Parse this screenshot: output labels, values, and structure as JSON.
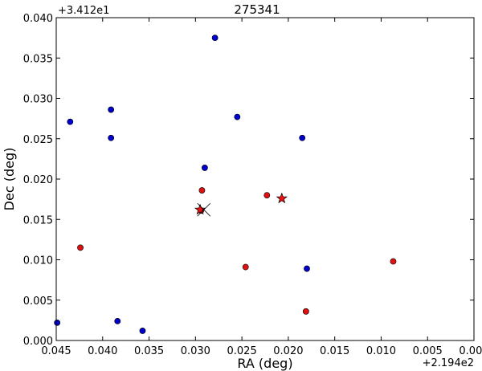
{
  "chart_data": {
    "type": "scatter",
    "title": "275341",
    "xlabel": "RA (deg)",
    "ylabel": "Dec (deg)",
    "x_offset_label": "+2.194e2",
    "y_offset_label": "+3.412e1",
    "xlim": [
      0.045,
      0.0
    ],
    "ylim": [
      0.0,
      0.04
    ],
    "x_ticks": [
      "0.045",
      "0.040",
      "0.035",
      "0.030",
      "0.025",
      "0.020",
      "0.015",
      "0.010",
      "0.005",
      "0.000"
    ],
    "y_ticks": [
      "0.000",
      "0.005",
      "0.010",
      "0.015",
      "0.020",
      "0.025",
      "0.030",
      "0.035",
      "0.040"
    ],
    "grid": false,
    "colors": {
      "blue": "#0000cc",
      "red": "#dd1111",
      "star": "#ee1111"
    },
    "series": [
      {
        "marker": "circle",
        "color": "#0000cc",
        "points": [
          {
            "x": 0.0435,
            "y": 0.0271
          },
          {
            "x": 0.0391,
            "y": 0.0286
          },
          {
            "x": 0.0391,
            "y": 0.0251
          },
          {
            "x": 0.0279,
            "y": 0.0375
          },
          {
            "x": 0.0255,
            "y": 0.0277
          },
          {
            "x": 0.0185,
            "y": 0.0251
          },
          {
            "x": 0.029,
            "y": 0.0214
          },
          {
            "x": 0.018,
            "y": 0.0089
          },
          {
            "x": 0.0384,
            "y": 0.0024
          },
          {
            "x": 0.0357,
            "y": 0.0012
          },
          {
            "x": 0.0449,
            "y": 0.0022
          }
        ]
      },
      {
        "marker": "circle",
        "color": "#dd1111",
        "points": [
          {
            "x": 0.0293,
            "y": 0.0186
          },
          {
            "x": 0.0223,
            "y": 0.018
          },
          {
            "x": 0.0424,
            "y": 0.0115
          },
          {
            "x": 0.0246,
            "y": 0.0091
          },
          {
            "x": 0.0087,
            "y": 0.0098
          },
          {
            "x": 0.0181,
            "y": 0.0036
          },
          {
            "x": 0.0294,
            "y": 0.0161
          }
        ]
      },
      {
        "marker": "star",
        "color": "#ee1111",
        "points": [
          {
            "x": 0.0207,
            "y": 0.0176
          },
          {
            "x": 0.0295,
            "y": 0.0162
          }
        ]
      },
      {
        "marker": "x",
        "color": "#000000",
        "points": [
          {
            "x": 0.0291,
            "y": 0.0162
          }
        ]
      }
    ]
  }
}
